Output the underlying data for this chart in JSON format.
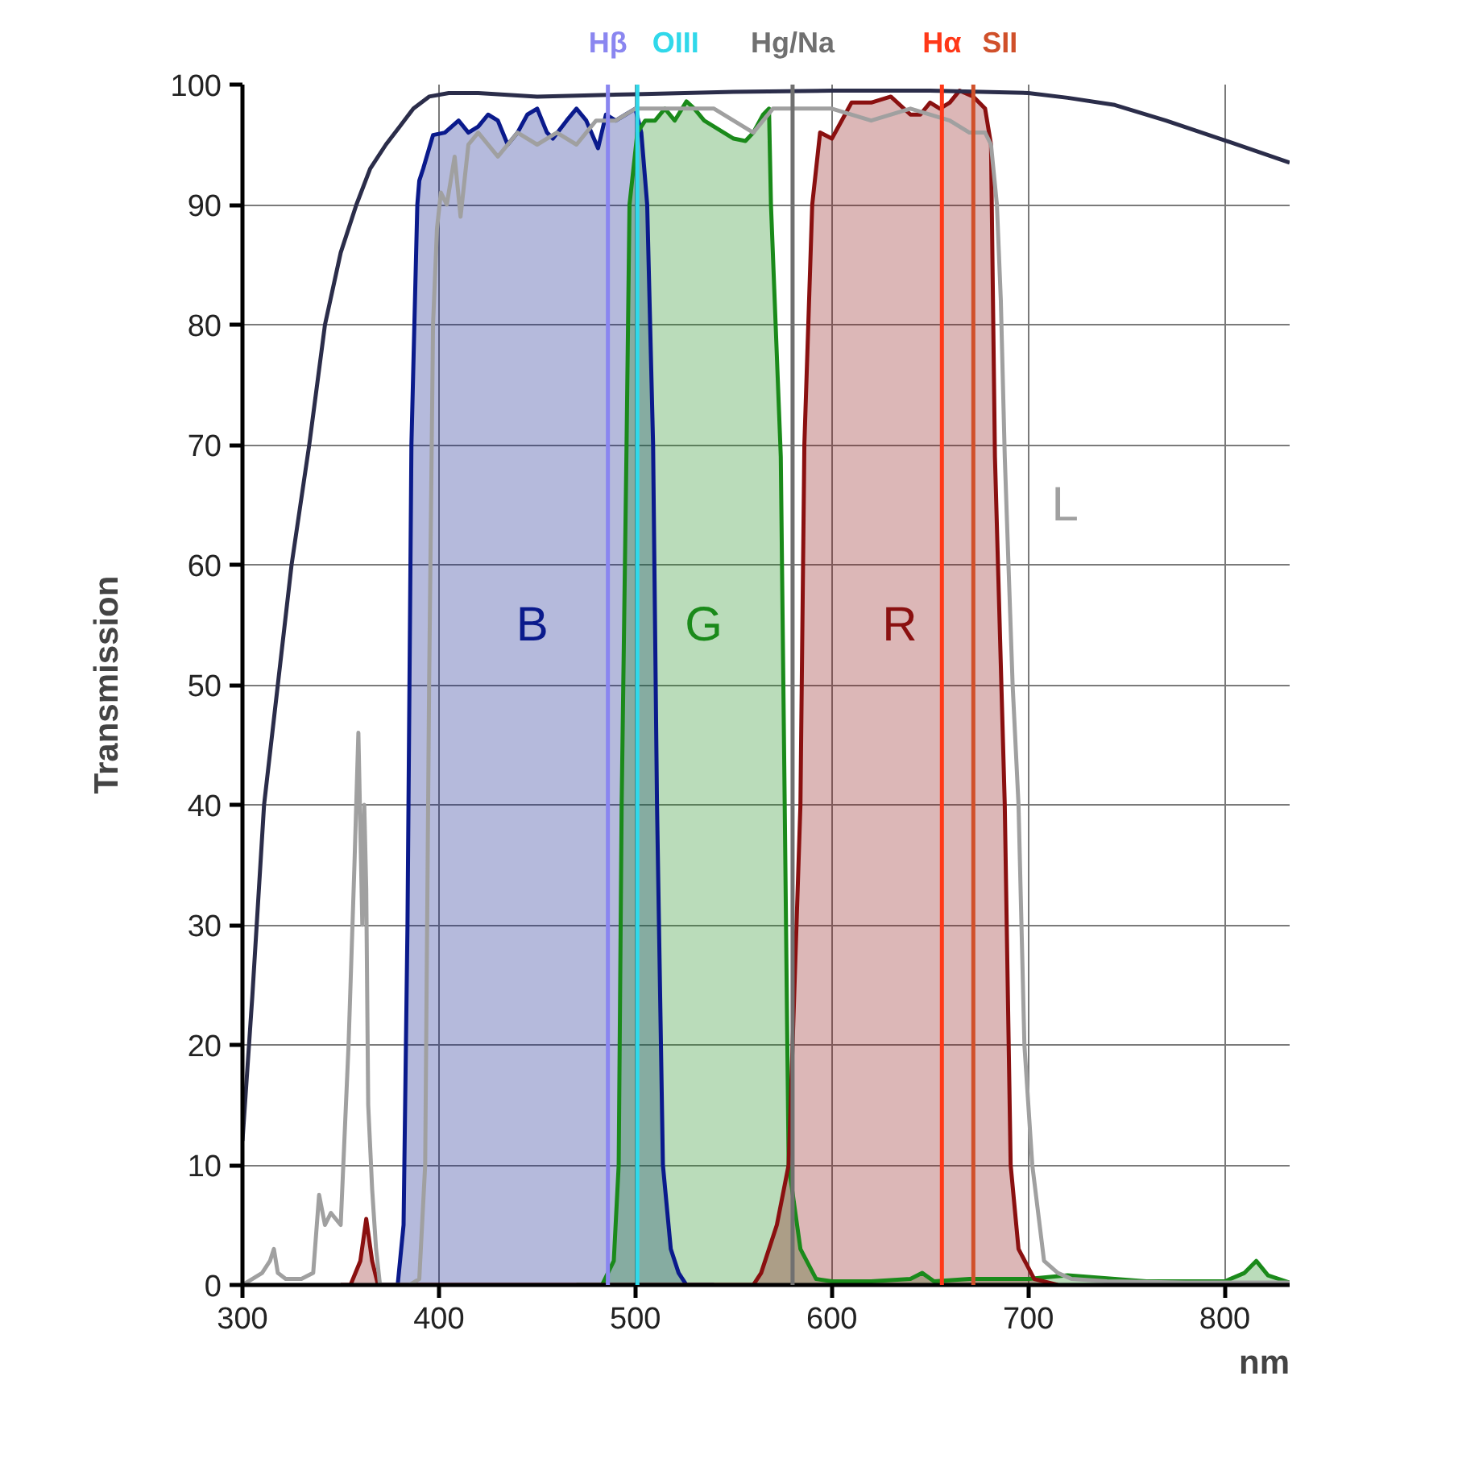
{
  "chart_data": {
    "type": "line",
    "xlabel": "nm",
    "ylabel": "Transmission",
    "xlim": [
      300,
      833
    ],
    "ylim": [
      0,
      100
    ],
    "xticks": [
      300,
      400,
      500,
      600,
      700,
      800
    ],
    "yticks": [
      0,
      10,
      20,
      30,
      40,
      50,
      60,
      70,
      80,
      90,
      100
    ],
    "grid": true,
    "series": [
      {
        "type": "area",
        "name": "B",
        "color": "#0a1a8c",
        "x": [
          370,
          379,
          382,
          384,
          386,
          389,
          390,
          392,
          397,
          403,
          410,
          415,
          420,
          425,
          430,
          435,
          440,
          445,
          450,
          455,
          458,
          465,
          470,
          475,
          481,
          485,
          490,
          495,
          500,
          503,
          506,
          509,
          511,
          513,
          514,
          518,
          522,
          526,
          540
        ],
        "values": [
          0,
          0,
          5,
          30,
          70,
          90,
          92,
          93,
          95.8,
          96,
          97,
          96,
          96.5,
          97.5,
          97,
          95,
          96,
          97.5,
          98,
          96,
          95.5,
          97,
          98,
          97,
          94.7,
          97.5,
          97,
          97.5,
          98,
          96,
          90,
          70,
          40,
          20,
          10,
          3,
          1,
          0,
          0
        ]
      },
      {
        "type": "area",
        "name": "G",
        "color": "#1a8a1a",
        "x": [
          470,
          483,
          489,
          491.5,
          493,
          495.5,
          497,
          501,
          505,
          510,
          515,
          520,
          526,
          530,
          535,
          540,
          545,
          550,
          556,
          560,
          565,
          568,
          569,
          574,
          576,
          578,
          584,
          592,
          600,
          620,
          640,
          646,
          652,
          670,
          700,
          720,
          760,
          800,
          810,
          816,
          822,
          833
        ],
        "values": [
          0,
          0,
          2,
          10,
          40,
          70,
          90,
          96,
          97,
          97,
          98,
          97,
          98.6,
          98,
          97,
          96.5,
          96,
          95.5,
          95.3,
          96,
          97.5,
          98,
          90,
          69,
          40,
          10,
          3,
          0.5,
          0.3,
          0.3,
          0.5,
          1,
          0.3,
          0.5,
          0.5,
          0.8,
          0.3,
          0.3,
          1,
          2,
          0.8,
          0.2
        ]
      },
      {
        "type": "area",
        "name": "R",
        "color": "#8a1010",
        "x": [
          350,
          355,
          360,
          363,
          366,
          369,
          372,
          560,
          564,
          572,
          578,
          584,
          586,
          590,
          594,
          600,
          605,
          610,
          620,
          630,
          640,
          645,
          650,
          655,
          660,
          665,
          672,
          678,
          681,
          683,
          688,
          691,
          695,
          703,
          715
        ],
        "values": [
          0,
          0,
          2,
          5.5,
          2,
          0,
          0,
          0,
          1,
          5,
          10,
          40,
          70,
          90,
          96,
          95.5,
          97,
          98.5,
          98.5,
          99,
          97.5,
          97.5,
          98.5,
          98,
          98.5,
          99.5,
          99,
          98,
          95,
          69,
          40,
          10,
          3,
          0.5,
          0
        ]
      },
      {
        "name": "L",
        "color": "#a0a0a0",
        "x": [
          300,
          305,
          310,
          314,
          316,
          318,
          322,
          330,
          336,
          339,
          342,
          345,
          350,
          354,
          357,
          359,
          360,
          361,
          362,
          363,
          364,
          366,
          368,
          370,
          372,
          385,
          390,
          393,
          395,
          397,
          399,
          401,
          404,
          408,
          411,
          415,
          420,
          430,
          440,
          450,
          460,
          470,
          480,
          490,
          500,
          520,
          540,
          560,
          565,
          570,
          580,
          600,
          620,
          640,
          660,
          670,
          678,
          681,
          684,
          686,
          688,
          692,
          695,
          698,
          702,
          708,
          715,
          722,
          740,
          780,
          833
        ],
        "values": [
          0,
          0.5,
          1,
          2,
          3,
          1,
          0.5,
          0.5,
          1,
          7.5,
          5,
          6,
          5,
          20,
          35,
          46,
          38,
          30,
          40,
          33,
          15,
          8,
          3,
          0,
          0,
          0,
          0.5,
          10,
          50,
          80,
          88,
          91,
          90,
          94,
          89,
          95,
          96,
          94,
          96,
          95,
          96,
          95,
          97,
          97,
          98,
          98,
          98,
          96,
          97,
          98,
          98,
          98,
          97,
          98,
          97,
          96,
          96,
          95,
          90,
          82,
          69,
          50,
          40,
          20,
          10,
          2,
          1,
          0.5,
          0.3,
          0.2,
          0.2
        ]
      },
      {
        "color": "#2b2d4a",
        "x": [
          300,
          305,
          311,
          318,
          325,
          334,
          342,
          350,
          358,
          365,
          373,
          380,
          387,
          395,
          405,
          420,
          450,
          500,
          550,
          600,
          650,
          700,
          720,
          744,
          770,
          801,
          833
        ],
        "values": [
          12,
          24,
          40,
          50,
          60,
          70,
          80,
          86,
          90,
          93,
          95,
          96.5,
          98,
          99,
          99.3,
          99.3,
          99,
          99.2,
          99.4,
          99.5,
          99.5,
          99.3,
          98.9,
          98.3,
          97,
          95.3,
          93.5
        ]
      }
    ],
    "ref_lines": [
      {
        "axis": "x",
        "value": 486,
        "label": "Hβ",
        "color": "#8a86f0"
      },
      {
        "axis": "x",
        "value": 501,
        "label": "OIII",
        "color": "#30d8ea"
      },
      {
        "axis": "x",
        "value": 580,
        "label": "Hg/Na",
        "color": "#707070"
      },
      {
        "axis": "x",
        "value": 656,
        "label": "Hα",
        "color": "#ff3818"
      },
      {
        "axis": "x",
        "value": 672,
        "label": "SII",
        "color": "#d0502a"
      }
    ]
  }
}
